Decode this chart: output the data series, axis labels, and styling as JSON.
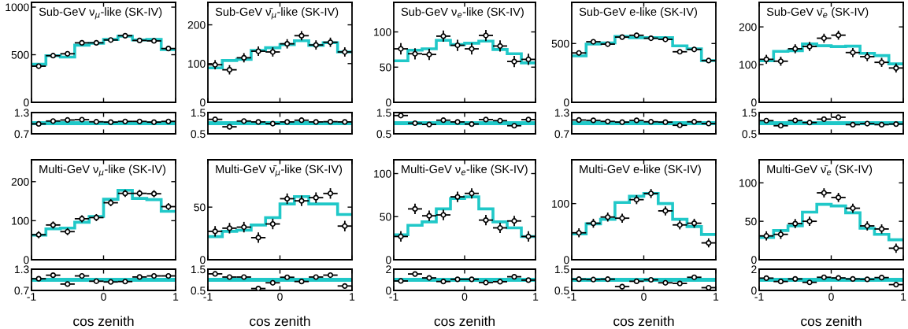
{
  "chart_data": [
    {
      "type": "step",
      "title": "Sub-GeV ν$_{μ}$-like (SK-IV)",
      "x": [
        -0.9,
        -0.7,
        -0.5,
        -0.3,
        -0.1,
        0.1,
        0.3,
        0.5,
        0.7,
        0.9
      ],
      "xlim": [
        -1,
        1
      ],
      "xticks": [
        -1,
        0,
        1
      ],
      "ylim": [
        0,
        1050
      ],
      "yticks": [
        0,
        500,
        1000
      ],
      "tick_labels": "y",
      "series": [
        {
          "type": "histogram",
          "bins": [
            -1,
            -0.8,
            -0.6,
            -0.4,
            -0.2,
            0,
            0.2,
            0.4,
            0.6,
            0.8,
            1
          ],
          "color": "#20c8c8",
          "values": [
            400,
            490,
            475,
            600,
            620,
            660,
            695,
            655,
            660,
            555
          ]
        },
        {
          "type": "scatter",
          "color": "#000000",
          "marker": "circle",
          "values": [
            380,
            490,
            510,
            625,
            625,
            655,
            700,
            650,
            645,
            565
          ],
          "errors": [
            20,
            20,
            20,
            20,
            20,
            20,
            20,
            20,
            20,
            20
          ],
          "xerrors": [
            0.1,
            0.1,
            0.1,
            0.1,
            0.1,
            0.1,
            0.1,
            0.1,
            0.1,
            0.1
          ]
        }
      ]
    },
    {
      "type": "scatter",
      "x": [
        -0.9,
        -0.7,
        -0.5,
        -0.3,
        -0.1,
        0.1,
        0.3,
        0.5,
        0.7,
        0.9
      ],
      "xlim": [
        -1,
        1
      ],
      "xticks": [
        -1,
        0,
        1
      ],
      "ylim": [
        0.7,
        1.3
      ],
      "yticks": [
        0.7,
        1.3
      ],
      "tick_labels": "y",
      "color": "#000000",
      "marker": "circle",
      "values": [
        0.98,
        1.06,
        1.09,
        1.1,
        1.04,
        1.03,
        1.05,
        1.05,
        1.03,
        1.05
      ],
      "xerrors": [
        0.1,
        0.1,
        0.1,
        0.1,
        0.1,
        0.1,
        0.1,
        0.1,
        0.1,
        0.1
      ],
      "ref_lines": [
        {
          "axis": "y",
          "value": 1,
          "color": "#20c8c8"
        }
      ]
    },
    {
      "type": "step",
      "title": "Multi-GeV ν$_{μ}$-like (SK-IV)",
      "x": [
        -0.9,
        -0.7,
        -0.5,
        -0.3,
        -0.1,
        0.1,
        0.3,
        0.5,
        0.7,
        0.9
      ],
      "xlim": [
        -1,
        1
      ],
      "xticks": [
        -1,
        0,
        1
      ],
      "ylim": [
        0,
        256
      ],
      "yticks": [
        0,
        100,
        200
      ],
      "tick_labels": "y",
      "series": [
        {
          "type": "histogram",
          "bins": [
            -1,
            -0.8,
            -0.6,
            -0.4,
            -0.2,
            0,
            0.2,
            0.4,
            0.6,
            0.8,
            1
          ],
          "color": "#20c8c8",
          "values": [
            63,
            79,
            81,
            96,
            111,
            155,
            178,
            157,
            154,
            124
          ]
        },
        {
          "type": "scatter",
          "color": "#000000",
          "marker": "circle",
          "values": [
            64,
            89,
            72,
            105,
            108,
            146,
            170,
            170,
            169,
            136
          ],
          "errors": [
            9,
            9,
            9,
            9,
            9,
            9,
            9,
            9,
            9,
            9
          ],
          "xerrors": [
            0.1,
            0.1,
            0.1,
            0.1,
            0.1,
            0.1,
            0.1,
            0.1,
            0.1,
            0.1
          ]
        }
      ]
    },
    {
      "type": "scatter",
      "xlabel": "cos zenith",
      "x": [
        -0.9,
        -0.7,
        -0.5,
        -0.3,
        -0.1,
        0.1,
        0.3,
        0.5,
        0.7,
        0.9
      ],
      "xlim": [
        -1,
        1
      ],
      "xticks": [
        -1,
        0,
        1
      ],
      "ylim": [
        0.7,
        1.3
      ],
      "yticks": [
        0.7,
        1.3
      ],
      "color": "#000000",
      "marker": "circle",
      "values": [
        1.03,
        1.13,
        0.88,
        1.11,
        0.96,
        0.94,
        0.95,
        1.08,
        1.11,
        1.11
      ],
      "xerrors": [
        0.1,
        0.1,
        0.1,
        0.1,
        0.1,
        0.1,
        0.1,
        0.1,
        0.1,
        0.1
      ],
      "ref_lines": [
        {
          "axis": "y",
          "value": 1,
          "color": "#20c8c8"
        }
      ]
    },
    {
      "type": "step",
      "title": "Sub-GeV ν̄$_{μ}$-like (SK-IV)",
      "x": [
        -0.9,
        -0.7,
        -0.5,
        -0.3,
        -0.1,
        0.1,
        0.3,
        0.5,
        0.7,
        0.9
      ],
      "xlim": [
        -1,
        1
      ],
      "xticks": [
        -1,
        0,
        1
      ],
      "ylim": [
        0,
        258
      ],
      "yticks": [
        0,
        100,
        200
      ],
      "tick_labels": "y",
      "series": [
        {
          "type": "histogram",
          "bins": [
            -1,
            -0.8,
            -0.6,
            -0.4,
            -0.2,
            0,
            0.2,
            0.4,
            0.6,
            0.8,
            1
          ],
          "color": "#20c8c8",
          "values": [
            89,
            108,
            111,
            134,
            141,
            149,
            159,
            147,
            154,
            130
          ]
        },
        {
          "type": "scatter",
          "color": "#000000",
          "marker": "circle",
          "values": [
            97,
            84,
            115,
            132,
            130,
            151,
            172,
            148,
            155,
            130
          ],
          "errors": [
            12,
            12,
            12,
            12,
            12,
            12,
            12,
            12,
            12,
            12
          ],
          "xerrors": [
            0.1,
            0.1,
            0.1,
            0.1,
            0.1,
            0.1,
            0.1,
            0.1,
            0.1,
            0.1
          ]
        }
      ]
    },
    {
      "type": "scatter",
      "x": [
        -0.9,
        -0.7,
        -0.5,
        -0.3,
        -0.1,
        0.1,
        0.3,
        0.5,
        0.7,
        0.9
      ],
      "xlim": [
        -1,
        1
      ],
      "xticks": [
        -1,
        0,
        1
      ],
      "ylim": [
        0.5,
        1.5
      ],
      "yticks": [
        0.5,
        1.5
      ],
      "tick_labels": "y",
      "color": "#000000",
      "marker": "circle",
      "values": [
        1.18,
        0.83,
        1.1,
        1.06,
        0.98,
        1.06,
        1.14,
        1.06,
        1.07,
        1.06
      ],
      "xerrors": [
        0.1,
        0.1,
        0.1,
        0.1,
        0.1,
        0.1,
        0.1,
        0.1,
        0.1,
        0.1
      ],
      "ref_lines": [
        {
          "axis": "y",
          "value": 1,
          "color": "#20c8c8"
        }
      ]
    },
    {
      "type": "step",
      "title": "Multi-GeV ν̄$_{μ}$-like (SK-IV)",
      "x": [
        -0.9,
        -0.7,
        -0.5,
        -0.3,
        -0.1,
        0.1,
        0.3,
        0.5,
        0.7,
        0.9
      ],
      "xlim": [
        -1,
        1
      ],
      "xticks": [
        -1,
        0,
        1
      ],
      "ylim": [
        0,
        95
      ],
      "yticks": [
        0,
        50
      ],
      "tick_labels": "y",
      "series": [
        {
          "type": "histogram",
          "bins": [
            -1,
            -0.8,
            -0.6,
            -0.4,
            -0.2,
            0,
            0.2,
            0.4,
            0.6,
            0.8,
            1
          ],
          "color": "#20c8c8",
          "values": [
            22,
            27,
            28,
            33,
            40,
            53,
            60,
            53,
            53,
            43
          ]
        },
        {
          "type": "scatter",
          "color": "#000000",
          "marker": "circle",
          "values": [
            27,
            30,
            31,
            21,
            34,
            58,
            56,
            59,
            63,
            32
          ],
          "errors": [
            5,
            5,
            5,
            5,
            5,
            5,
            5,
            5,
            5,
            5
          ],
          "xerrors": [
            0.1,
            0.1,
            0.1,
            0.1,
            0.1,
            0.1,
            0.1,
            0.1,
            0.1,
            0.1
          ]
        }
      ]
    },
    {
      "type": "scatter",
      "xlabel": "cos zenith",
      "x": [
        -0.9,
        -0.7,
        -0.5,
        -0.3,
        -0.1,
        0.1,
        0.3,
        0.5,
        0.7,
        0.9
      ],
      "xlim": [
        -1,
        1
      ],
      "xticks": [
        -1,
        0,
        1
      ],
      "ylim": [
        0.5,
        1.5
      ],
      "yticks": [
        0.5,
        1.5
      ],
      "color": "#000000",
      "marker": "circle",
      "values": [
        1.28,
        1.13,
        1.13,
        0.59,
        0.86,
        1.12,
        0.92,
        1.13,
        1.22,
        0.71
      ],
      "xerrors": [
        0.1,
        0.1,
        0.1,
        0.1,
        0.1,
        0.1,
        0.1,
        0.1,
        0.1,
        0.1
      ],
      "ref_lines": [
        {
          "axis": "y",
          "value": 1,
          "color": "#20c8c8"
        }
      ]
    },
    {
      "type": "step",
      "title": "Sub-GeV ν$_{e}$-like (SK-IV)",
      "x": [
        -0.9,
        -0.7,
        -0.5,
        -0.3,
        -0.1,
        0.1,
        0.3,
        0.5,
        0.7,
        0.9
      ],
      "xlim": [
        -1,
        1
      ],
      "xticks": [
        -1,
        0,
        1
      ],
      "ylim": [
        0,
        142
      ],
      "yticks": [
        0,
        50,
        100
      ],
      "tick_labels": "y",
      "series": [
        {
          "type": "histogram",
          "bins": [
            -1,
            -0.8,
            -0.6,
            -0.4,
            -0.2,
            0,
            0.2,
            0.4,
            0.6,
            0.8,
            1
          ],
          "color": "#20c8c8",
          "values": [
            59,
            74,
            76,
            88,
            82,
            84,
            87,
            75,
            69,
            56
          ]
        },
        {
          "type": "scatter",
          "color": "#000000",
          "marker": "circle",
          "values": [
            76,
            69,
            68,
            94,
            81,
            76,
            95,
            80,
            58,
            61
          ],
          "errors": [
            8,
            8,
            8,
            8,
            8,
            8,
            8,
            8,
            8,
            8
          ],
          "xerrors": [
            0.1,
            0.1,
            0.1,
            0.1,
            0.1,
            0.1,
            0.1,
            0.1,
            0.1,
            0.1
          ]
        }
      ]
    },
    {
      "type": "scatter",
      "x": [
        -0.9,
        -0.7,
        -0.5,
        -0.3,
        -0.1,
        0.1,
        0.3,
        0.5,
        0.7,
        0.9
      ],
      "xlim": [
        -1,
        1
      ],
      "xticks": [
        -1,
        0,
        1
      ],
      "ylim": [
        0.5,
        1.5
      ],
      "yticks": [
        0.5,
        1.5
      ],
      "tick_labels": "y",
      "color": "#000000",
      "marker": "circle",
      "values": [
        1.36,
        1.0,
        0.94,
        1.14,
        1.06,
        0.96,
        1.17,
        1.12,
        0.88,
        1.17
      ],
      "xerrors": [
        0.1,
        0.1,
        0.1,
        0.1,
        0.1,
        0.1,
        0.1,
        0.1,
        0.1,
        0.1
      ],
      "ref_lines": [
        {
          "axis": "y",
          "value": 1,
          "color": "#20c8c8"
        }
      ]
    },
    {
      "type": "step",
      "title": "Multi-GeV ν$_{e}$-like (SK-IV)",
      "x": [
        -0.9,
        -0.7,
        -0.5,
        -0.3,
        -0.1,
        0.1,
        0.3,
        0.5,
        0.7,
        0.9
      ],
      "xlim": [
        -1,
        1
      ],
      "xticks": [
        -1,
        0,
        1
      ],
      "ylim": [
        0,
        116
      ],
      "yticks": [
        0,
        50,
        100
      ],
      "tick_labels": "y",
      "series": [
        {
          "type": "histogram",
          "bins": [
            -1,
            -0.8,
            -0.6,
            -0.4,
            -0.2,
            0,
            0.2,
            0.4,
            0.6,
            0.8,
            1
          ],
          "color": "#20c8c8",
          "values": [
            29,
            40,
            44,
            59,
            71,
            73,
            59,
            44,
            37,
            27
          ]
        },
        {
          "type": "scatter",
          "color": "#000000",
          "marker": "circle",
          "values": [
            27,
            59,
            51,
            52,
            73,
            77,
            46,
            37,
            45,
            27
          ],
          "errors": [
            6,
            6,
            6,
            6,
            6,
            6,
            6,
            6,
            6,
            6
          ],
          "xerrors": [
            0.1,
            0.1,
            0.1,
            0.1,
            0.1,
            0.1,
            0.1,
            0.1,
            0.1,
            0.1
          ]
        }
      ]
    },
    {
      "type": "scatter",
      "xlabel": "cos zenith",
      "x": [
        -0.9,
        -0.7,
        -0.5,
        -0.3,
        -0.1,
        0.1,
        0.3,
        0.5,
        0.7,
        0.9
      ],
      "xlim": [
        -1,
        1
      ],
      "xticks": [
        -1,
        0,
        1
      ],
      "ylim": [
        0,
        2
      ],
      "yticks": [
        0,
        2
      ],
      "color": "#000000",
      "marker": "circle",
      "values": [
        0.89,
        1.55,
        1.18,
        0.84,
        1.05,
        1.05,
        0.74,
        0.82,
        1.29,
        0.97
      ],
      "xerrors": [
        0.1,
        0.1,
        0.1,
        0.1,
        0.1,
        0.1,
        0.1,
        0.1,
        0.1,
        0.1
      ],
      "ref_lines": [
        {
          "axis": "y",
          "value": 1,
          "color": "#20c8c8"
        }
      ]
    },
    {
      "type": "step",
      "title": "Sub-GeV e-like (SK-IV)",
      "x": [
        -0.9,
        -0.7,
        -0.5,
        -0.3,
        -0.1,
        0.1,
        0.3,
        0.5,
        0.7,
        0.9
      ],
      "xlim": [
        -1,
        1
      ],
      "xticks": [
        -1,
        0,
        1
      ],
      "ylim": [
        0,
        850
      ],
      "yticks": [
        0,
        500
      ],
      "tick_labels": "y",
      "series": [
        {
          "type": "histogram",
          "bins": [
            -1,
            -0.8,
            -0.6,
            -0.4,
            -0.2,
            0,
            0.2,
            0.4,
            0.6,
            0.8,
            1
          ],
          "color": "#20c8c8",
          "values": [
            395,
            495,
            505,
            560,
            550,
            550,
            550,
            480,
            455,
            355
          ]
        },
        {
          "type": "scatter",
          "color": "#000000",
          "marker": "circle",
          "values": [
            420,
            515,
            495,
            555,
            570,
            545,
            535,
            430,
            450,
            355
          ],
          "errors": [
            20,
            20,
            20,
            20,
            20,
            20,
            20,
            20,
            20,
            20
          ],
          "xerrors": [
            0.1,
            0.1,
            0.1,
            0.1,
            0.1,
            0.1,
            0.1,
            0.1,
            0.1,
            0.1
          ]
        }
      ]
    },
    {
      "type": "scatter",
      "x": [
        -0.9,
        -0.7,
        -0.5,
        -0.3,
        -0.1,
        0.1,
        0.3,
        0.5,
        0.7,
        0.9
      ],
      "xlim": [
        -1,
        1
      ],
      "xticks": [
        -1,
        0,
        1
      ],
      "ylim": [
        0.7,
        1.3
      ],
      "yticks": [
        0.7,
        1.3
      ],
      "tick_labels": "y",
      "color": "#000000",
      "marker": "circle",
      "values": [
        1.09,
        1.08,
        1.05,
        1.03,
        1.08,
        1.04,
        1.03,
        0.94,
        1.04,
        0.99
      ],
      "xerrors": [
        0.1,
        0.1,
        0.1,
        0.1,
        0.1,
        0.1,
        0.1,
        0.1,
        0.1,
        0.1
      ],
      "ref_lines": [
        {
          "axis": "y",
          "value": 1,
          "color": "#20c8c8"
        }
      ]
    },
    {
      "type": "step",
      "title": "Multi-GeV e-like (SK-IV)",
      "x": [
        -0.9,
        -0.7,
        -0.5,
        -0.3,
        -0.1,
        0.1,
        0.3,
        0.5,
        0.7,
        0.9
      ],
      "xlim": [
        -1,
        1
      ],
      "xticks": [
        -1,
        0,
        1
      ],
      "ylim": [
        0,
        178
      ],
      "yticks": [
        0,
        100
      ],
      "tick_labels": "y",
      "series": [
        {
          "type": "histogram",
          "bins": [
            -1,
            -0.8,
            -0.6,
            -0.4,
            -0.2,
            0,
            0.2,
            0.4,
            0.6,
            0.8,
            1
          ],
          "color": "#20c8c8",
          "values": [
            46,
            64,
            72,
            102,
            113,
            118,
            100,
            72,
            59,
            45
          ]
        },
        {
          "type": "scatter",
          "color": "#000000",
          "marker": "circle",
          "values": [
            48,
            65,
            76,
            74,
            107,
            118,
            87,
            62,
            65,
            30
          ],
          "errors": [
            8,
            8,
            8,
            8,
            8,
            8,
            8,
            8,
            8,
            8
          ],
          "xerrors": [
            0.1,
            0.1,
            0.1,
            0.1,
            0.1,
            0.1,
            0.1,
            0.1,
            0.1,
            0.1
          ]
        }
      ]
    },
    {
      "type": "scatter",
      "xlabel": "cos zenith",
      "x": [
        -0.9,
        -0.7,
        -0.5,
        -0.3,
        -0.1,
        0.1,
        0.3,
        0.5,
        0.7,
        0.9
      ],
      "xlim": [
        -1,
        1
      ],
      "xticks": [
        -1,
        0,
        1
      ],
      "ylim": [
        0.5,
        1.5
      ],
      "yticks": [
        0.5,
        1.5
      ],
      "color": "#000000",
      "marker": "circle",
      "values": [
        1.03,
        1.01,
        1.03,
        0.68,
        0.93,
        1.0,
        0.86,
        0.83,
        1.12,
        0.63
      ],
      "xerrors": [
        0.1,
        0.1,
        0.1,
        0.1,
        0.1,
        0.1,
        0.1,
        0.1,
        0.1,
        0.1
      ],
      "ref_lines": [
        {
          "axis": "y",
          "value": 1,
          "color": "#20c8c8"
        }
      ]
    },
    {
      "type": "step",
      "title": "Sub-GeV ν̄$_{e}$ (SK-IV)",
      "x": [
        -0.9,
        -0.7,
        -0.5,
        -0.3,
        -0.1,
        0.1,
        0.3,
        0.5,
        0.7,
        0.9
      ],
      "xlim": [
        -1,
        1
      ],
      "xticks": [
        -1,
        0,
        1
      ],
      "ylim": [
        0,
        265
      ],
      "yticks": [
        0,
        100,
        200
      ],
      "tick_labels": "y",
      "series": [
        {
          "type": "histogram",
          "bins": [
            -1,
            -0.8,
            -0.6,
            -0.4,
            -0.2,
            0,
            0.2,
            0.4,
            0.6,
            0.8,
            1
          ],
          "color": "#20c8c8",
          "values": [
            110,
            135,
            137,
            155,
            150,
            148,
            149,
            130,
            124,
            102
          ]
        },
        {
          "type": "scatter",
          "color": "#000000",
          "marker": "circle",
          "values": [
            114,
            109,
            142,
            148,
            170,
            178,
            132,
            121,
            106,
            91
          ],
          "errors": [
            12,
            12,
            12,
            12,
            12,
            12,
            12,
            12,
            12,
            12
          ],
          "xerrors": [
            0.1,
            0.1,
            0.1,
            0.1,
            0.1,
            0.1,
            0.1,
            0.1,
            0.1,
            0.1
          ]
        }
      ]
    },
    {
      "type": "scatter",
      "x": [
        -0.9,
        -0.7,
        -0.5,
        -0.3,
        -0.1,
        0.1,
        0.3,
        0.5,
        0.7,
        0.9
      ],
      "xlim": [
        -1,
        1
      ],
      "xticks": [
        -1,
        0,
        1
      ],
      "ylim": [
        0.5,
        1.5
      ],
      "yticks": [
        0.5,
        1.5
      ],
      "tick_labels": "y",
      "color": "#000000",
      "marker": "circle",
      "values": [
        1.12,
        0.88,
        1.13,
        1.03,
        1.19,
        1.28,
        0.93,
        0.98,
        0.93,
        0.96
      ],
      "xerrors": [
        0.1,
        0.1,
        0.1,
        0.1,
        0.1,
        0.1,
        0.1,
        0.1,
        0.1,
        0.1
      ],
      "ref_lines": [
        {
          "axis": "y",
          "value": 1,
          "color": "#20c8c8"
        }
      ]
    },
    {
      "type": "step",
      "title": "Multi-GeV ν̄$_{e}$ (SK-IV)",
      "x": [
        -0.9,
        -0.7,
        -0.5,
        -0.3,
        -0.1,
        0.1,
        0.3,
        0.5,
        0.7,
        0.9
      ],
      "xlim": [
        -1,
        1
      ],
      "xticks": [
        -1,
        0,
        1
      ],
      "ylim": [
        0,
        130
      ],
      "yticks": [
        0,
        50,
        100
      ],
      "tick_labels": "y",
      "series": [
        {
          "type": "histogram",
          "bins": [
            -1,
            -0.8,
            -0.6,
            -0.4,
            -0.2,
            0,
            0.2,
            0.4,
            0.6,
            0.8,
            1
          ],
          "color": "#20c8c8",
          "values": [
            29,
            38,
            44,
            62,
            72,
            70,
            61,
            41,
            33,
            26
          ]
        },
        {
          "type": "scatter",
          "color": "#000000",
          "marker": "circle",
          "values": [
            31,
            33,
            47,
            50,
            87,
            81,
            67,
            44,
            40,
            15
          ],
          "errors": [
            6,
            6,
            6,
            6,
            6,
            6,
            6,
            6,
            6,
            6
          ],
          "xerrors": [
            0.1,
            0.1,
            0.1,
            0.1,
            0.1,
            0.1,
            0.1,
            0.1,
            0.1,
            0.1
          ]
        }
      ]
    },
    {
      "type": "scatter",
      "xlabel": "cos zenith",
      "x": [
        -0.9,
        -0.7,
        -0.5,
        -0.3,
        -0.1,
        0.1,
        0.3,
        0.5,
        0.7,
        0.9
      ],
      "xlim": [
        -1,
        1
      ],
      "xticks": [
        -1,
        0,
        1
      ],
      "ylim": [
        0,
        2
      ],
      "yticks": [
        0,
        2
      ],
      "color": "#000000",
      "marker": "circle",
      "values": [
        1.16,
        0.84,
        1.08,
        0.76,
        1.24,
        1.18,
        1.08,
        1.05,
        1.21,
        0.55
      ],
      "xerrors": [
        0.1,
        0.1,
        0.1,
        0.1,
        0.1,
        0.1,
        0.1,
        0.1,
        0.1,
        0.1
      ],
      "ref_lines": [
        {
          "axis": "y",
          "value": 1,
          "color": "#20c8c8"
        }
      ]
    }
  ]
}
